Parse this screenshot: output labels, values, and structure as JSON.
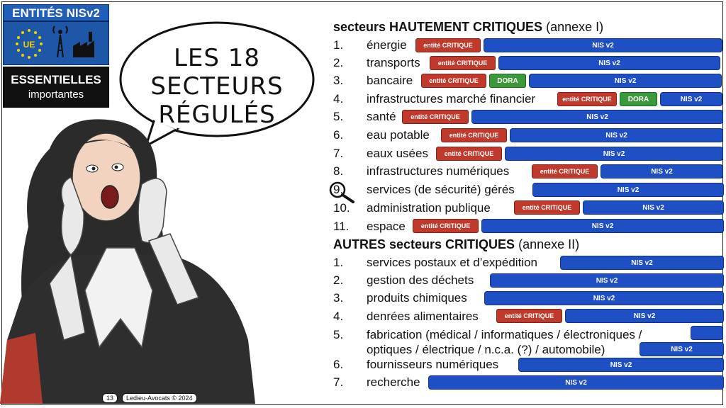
{
  "badges": {
    "top": "ENTITÉS NISv2",
    "eu": "UE",
    "line1": "ESSENTIELLES",
    "line2": "importantes"
  },
  "bubble": {
    "line1": "LES 18",
    "line2": "SECTEURS",
    "line3": "RÉGULÉS"
  },
  "credit": {
    "page": "13",
    "author": "Ledieu-Avocats © 2024"
  },
  "section1": {
    "title_bold": "secteurs HAUTEMENT CRITIQUES",
    "title_rest": "(annexe I)"
  },
  "section2": {
    "title_bold": "AUTRES secteurs CRITIQUES",
    "title_rest": "(annexe II)"
  },
  "tags": {
    "crit": "entité CRITIQUE",
    "dora": "DORA",
    "nis": "NIS v2"
  },
  "rows1": [
    {
      "num": "1.",
      "label": "énergie"
    },
    {
      "num": "2.",
      "label": "transports"
    },
    {
      "num": "3.",
      "label": "bancaire"
    },
    {
      "num": "4.",
      "label": "infrastructures marché financier"
    },
    {
      "num": "5.",
      "label": "santé"
    },
    {
      "num": "6.",
      "label": "eau potable"
    },
    {
      "num": "7.",
      "label": "eaux usées"
    },
    {
      "num": "8.",
      "label": "infrastructures numériques"
    },
    {
      "num": "9.",
      "label": "services (de sécurité) gérés"
    },
    {
      "num": "10.",
      "label": "administration publique"
    },
    {
      "num": "11.",
      "label": "espace"
    }
  ],
  "rows2": [
    {
      "num": "1.",
      "label": "services postaux et d’expédition"
    },
    {
      "num": "2.",
      "label": "gestion des déchets"
    },
    {
      "num": "3.",
      "label": "produits chimiques"
    },
    {
      "num": "4.",
      "label": "denrées alimentaires"
    },
    {
      "num": "5.",
      "label": "fabrication (médical / informatiques / électroniques /"
    },
    {
      "num": "",
      "label": "optiques / électrique / n.c.a. (?) / automobile)"
    },
    {
      "num": "6.",
      "label": "fournisseurs numériques"
    },
    {
      "num": "7.",
      "label": "recherche"
    }
  ],
  "colors": {
    "critique": "#c0392b",
    "dora": "#3a9a3a",
    "nis": "#1f4fc4",
    "eu_blue": "#1e56a8"
  }
}
